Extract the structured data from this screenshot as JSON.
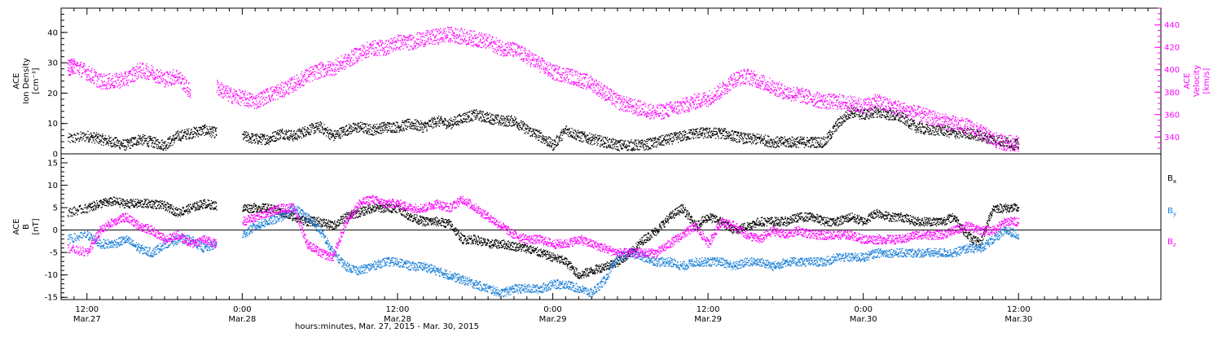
{
  "colors": {
    "black": "#000000",
    "magenta": "#ff00ff",
    "blue": "#1a7fd6",
    "background": "#ffffff"
  },
  "x_axis": {
    "title": "hours:minutes, Mar. 27, 2015 - Mar. 30, 2015",
    "range_hours_from_mar27_0000": [
      10.0,
      95.0
    ],
    "ticks": [
      {
        "time": "12:00",
        "date": "Mar.27",
        "hours": 12
      },
      {
        "time": "0:00",
        "date": "Mar.28",
        "hours": 24
      },
      {
        "time": "12:00",
        "date": "Mar.28",
        "hours": 36
      },
      {
        "time": "0:00",
        "date": "Mar.29",
        "hours": 48
      },
      {
        "time": "12:00",
        "date": "Mar.29",
        "hours": 60
      },
      {
        "time": "0:00",
        "date": "Mar.30",
        "hours": 72
      },
      {
        "time": "12:00",
        "date": "Mar.30",
        "hours": 84
      }
    ]
  },
  "chart_data": [
    {
      "type": "scatter",
      "panel": "top",
      "left_ylabel_lines": [
        "ACE",
        "Ion Density",
        "[cm⁻³]"
      ],
      "right_ylabel_lines": [
        "ACE",
        "Velocity",
        "[km/s]"
      ],
      "left_ylim": [
        0,
        48
      ],
      "left_ticks": [
        0,
        10,
        20,
        30,
        40
      ],
      "right_ylim": [
        325,
        455
      ],
      "right_ticks": [
        340,
        360,
        380,
        400,
        420,
        440
      ],
      "series": [
        {
          "axis": "left",
          "color": "#000000",
          "x": [
            10.5,
            12,
            13,
            14,
            15,
            16,
            17,
            18,
            19,
            20,
            21,
            22,
            24,
            25,
            26,
            27,
            28,
            29,
            30,
            31,
            32,
            33,
            34,
            35,
            36,
            37,
            38,
            39,
            40,
            41,
            42,
            43,
            44,
            45,
            46,
            47,
            48,
            49,
            50,
            51,
            52,
            53,
            54,
            55,
            56,
            57,
            58,
            59,
            60,
            61,
            62,
            63,
            64,
            65,
            66,
            67,
            68,
            69,
            70,
            71,
            72,
            73,
            74,
            75,
            76,
            77,
            78,
            79,
            80,
            81,
            82,
            83,
            84
          ],
          "y": [
            5,
            6,
            5,
            4,
            3,
            5,
            4,
            3,
            6,
            7,
            8,
            7,
            6,
            5,
            5,
            7,
            6,
            8,
            9,
            6,
            8,
            9,
            8,
            9,
            9,
            10,
            9,
            11,
            10,
            12,
            13,
            12,
            11,
            11,
            8,
            6,
            3,
            8,
            6,
            5,
            4,
            3,
            3,
            3,
            4,
            5,
            6,
            7,
            7,
            7,
            6,
            5,
            5,
            4,
            4,
            4,
            4,
            4,
            10,
            14,
            13,
            14,
            13,
            12,
            9,
            8,
            8,
            7,
            7,
            6,
            5,
            4,
            3
          ]
        },
        {
          "axis": "right",
          "color": "#ff00ff",
          "x": [
            10.5,
            11,
            12,
            13,
            14,
            15,
            16,
            17,
            18,
            19,
            20,
            22,
            23,
            24,
            25,
            26,
            27,
            28,
            29,
            30,
            31,
            32,
            33,
            34,
            35,
            36,
            37,
            38,
            39,
            40,
            41,
            42,
            43,
            44,
            45,
            46,
            47,
            48,
            49,
            50,
            51,
            52,
            53,
            54,
            55,
            56,
            57,
            58,
            59,
            60,
            61,
            62,
            63,
            64,
            65,
            66,
            67,
            68,
            69,
            70,
            71,
            72,
            73,
            74,
            75,
            76,
            77,
            78,
            79,
            80,
            81,
            82,
            83,
            84
          ],
          "y": [
            402,
            404,
            398,
            390,
            390,
            392,
            400,
            398,
            392,
            395,
            380,
            385,
            378,
            375,
            372,
            378,
            382,
            388,
            395,
            400,
            402,
            408,
            415,
            420,
            420,
            425,
            425,
            428,
            430,
            432,
            430,
            428,
            425,
            420,
            418,
            412,
            405,
            398,
            396,
            392,
            388,
            380,
            372,
            368,
            365,
            362,
            365,
            368,
            372,
            375,
            382,
            392,
            395,
            390,
            385,
            380,
            378,
            375,
            372,
            372,
            370,
            368,
            372,
            368,
            365,
            362,
            358,
            355,
            352,
            350,
            345,
            338,
            335,
            335
          ]
        }
      ]
    },
    {
      "type": "scatter",
      "panel": "bottom",
      "left_ylabel_lines": [
        "ACE",
        "B",
        "[nT]"
      ],
      "left_ylim": [
        -15.5,
        17
      ],
      "left_ticks": [
        -15,
        -10,
        -5,
        0,
        5,
        10,
        15
      ],
      "zero_line": true,
      "series": [
        {
          "name": "Bx",
          "label_main": "B",
          "label_sub": "x",
          "color": "#000000",
          "x": [
            10.5,
            12,
            13,
            14,
            15,
            16,
            17,
            18,
            19,
            20,
            21,
            22,
            24,
            25,
            26,
            27,
            28,
            29,
            30,
            31,
            32,
            33,
            34,
            35,
            36,
            37,
            38,
            39,
            40,
            41,
            42,
            43,
            44,
            45,
            46,
            47,
            48,
            49,
            50,
            51,
            52,
            53,
            54,
            55,
            56,
            57,
            58,
            59,
            60,
            61,
            62,
            63,
            64,
            65,
            66,
            67,
            68,
            69,
            70,
            71,
            72,
            73,
            74,
            75,
            76,
            77,
            78,
            79,
            80,
            81,
            82,
            83,
            84
          ],
          "y": [
            4,
            5,
            6,
            6.5,
            6,
            6,
            6,
            5.5,
            4,
            5,
            6,
            5.5,
            5,
            5,
            5,
            4,
            3,
            2,
            2,
            1,
            3,
            4,
            5,
            5,
            5,
            3,
            2,
            2,
            1.5,
            -2,
            -2,
            -3,
            -3,
            -3.5,
            -4,
            -5,
            -6,
            -7,
            -10,
            -9,
            -8,
            -7,
            -5,
            -2,
            0,
            3,
            5,
            1,
            3,
            2,
            0,
            1,
            2,
            2,
            2,
            3,
            3,
            2,
            2,
            3,
            2,
            4,
            3,
            3,
            2,
            2,
            2,
            3,
            -1,
            -3,
            5,
            5,
            5
          ]
        },
        {
          "name": "By",
          "label_main": "B",
          "label_sub": "y",
          "color": "#1a7fd6",
          "x": [
            10.5,
            12,
            13,
            14,
            15,
            16,
            17,
            18,
            19,
            20,
            21,
            22,
            24,
            25,
            26,
            27,
            28,
            29,
            30,
            31,
            32,
            33,
            34,
            35,
            36,
            37,
            38,
            39,
            40,
            41,
            42,
            43,
            44,
            45,
            46,
            47,
            48,
            49,
            50,
            51,
            52,
            53,
            54,
            55,
            56,
            57,
            58,
            59,
            60,
            61,
            62,
            63,
            64,
            65,
            66,
            67,
            68,
            69,
            70,
            71,
            72,
            73,
            74,
            75,
            76,
            77,
            78,
            79,
            80,
            81,
            82,
            83,
            84
          ],
          "y": [
            -2,
            -1,
            -3,
            -3,
            -2,
            -4,
            -5,
            -3,
            -2,
            -2,
            -4,
            -3,
            -1,
            1,
            2,
            3,
            5,
            3,
            0,
            -5,
            -8,
            -9,
            -8,
            -7,
            -7,
            -8,
            -8,
            -9,
            -10,
            -11,
            -12,
            -13,
            -14,
            -13,
            -13,
            -13,
            -12,
            -12,
            -13,
            -14,
            -11,
            -6,
            -5,
            -6,
            -7,
            -7,
            -8,
            -7,
            -7,
            -7,
            -8,
            -7,
            -7,
            -8,
            -7,
            -7,
            -7,
            -7,
            -6,
            -6,
            -6,
            -5,
            -5,
            -5,
            -5,
            -5,
            -5,
            -5,
            -4,
            -4,
            -2,
            0,
            -1
          ]
        },
        {
          "name": "Bz",
          "label_main": "B",
          "label_sub": "z",
          "color": "#ff00ff",
          "x": [
            10.5,
            12,
            13,
            14,
            15,
            16,
            17,
            18,
            19,
            20,
            21,
            22,
            24,
            25,
            26,
            27,
            28,
            29,
            30,
            31,
            32,
            33,
            34,
            35,
            36,
            37,
            38,
            39,
            40,
            41,
            42,
            43,
            44,
            45,
            46,
            47,
            48,
            49,
            50,
            51,
            52,
            53,
            54,
            55,
            56,
            57,
            58,
            59,
            60,
            61,
            62,
            63,
            64,
            65,
            66,
            67,
            68,
            69,
            70,
            71,
            72,
            73,
            74,
            75,
            76,
            77,
            78,
            79,
            80,
            81,
            82,
            83,
            84
          ],
          "y": [
            -4,
            -5,
            0,
            2,
            3,
            1,
            0,
            -2,
            -1,
            -3,
            -2,
            -3,
            2,
            3,
            4,
            5,
            5,
            -3,
            -5,
            -6,
            2,
            6,
            7,
            6,
            6,
            5,
            5,
            6,
            5,
            7,
            5,
            3,
            1,
            -1,
            -2,
            -2,
            -3,
            -3,
            -2,
            -3,
            -4,
            -5,
            -5,
            -5,
            -5,
            -3,
            -1,
            1,
            -3,
            2,
            1,
            -1,
            -2,
            0,
            -1,
            0,
            -1,
            -1,
            -1,
            -1,
            -2,
            -2,
            -2,
            -2,
            -1,
            -1,
            -1,
            0,
            1,
            0,
            0,
            2,
            2
          ]
        }
      ]
    }
  ]
}
